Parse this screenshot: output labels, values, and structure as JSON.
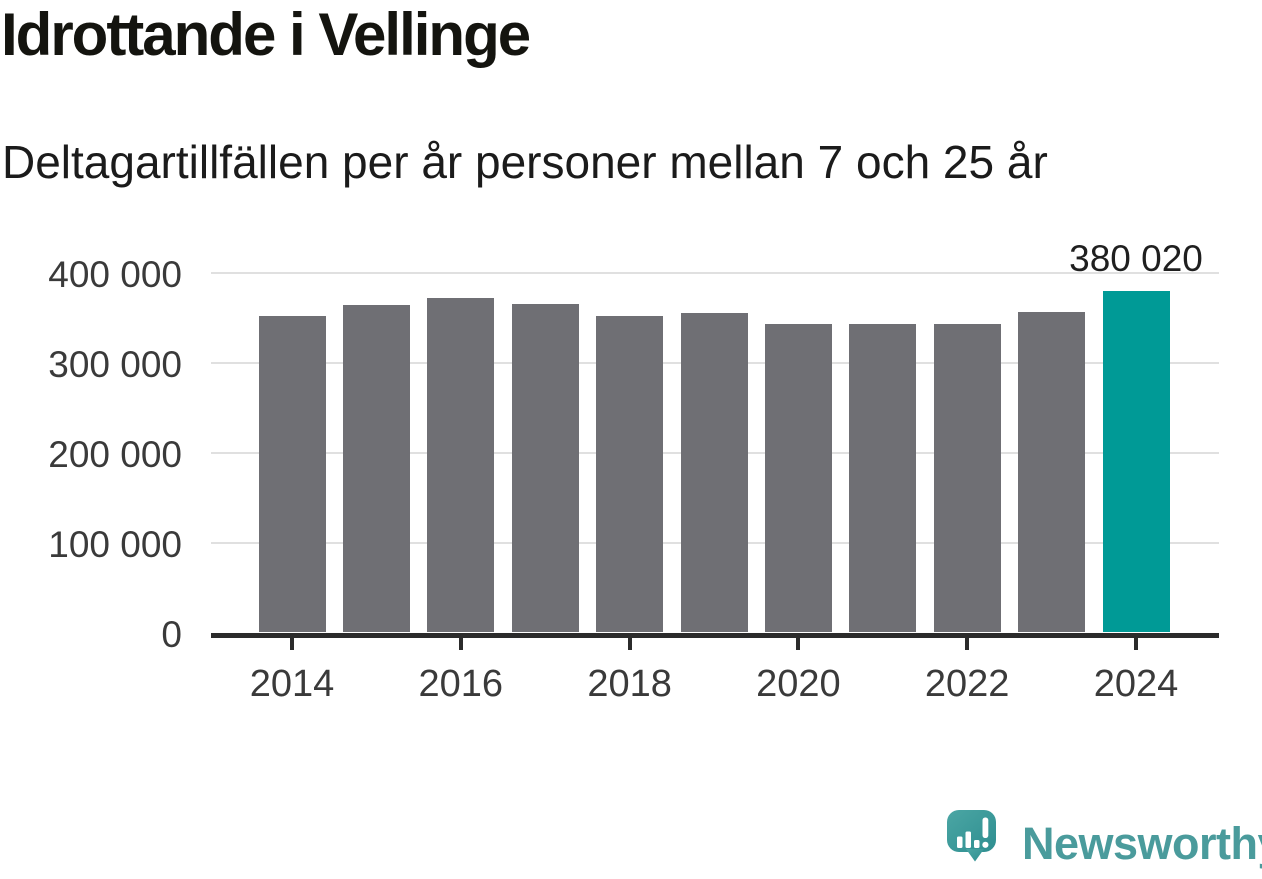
{
  "header": {
    "title": "Idrottande i Vellinge",
    "subtitle": "Deltagartillfällen per år personer mellan 7 och 25 år"
  },
  "chart_data": {
    "type": "bar",
    "categories": [
      "2014",
      "2015",
      "2016",
      "2017",
      "2018",
      "2019",
      "2020",
      "2021",
      "2022",
      "2023",
      "2024"
    ],
    "values": [
      352000,
      364500,
      372500,
      366000,
      352500,
      355500,
      344000,
      344000,
      344000,
      357500,
      380020
    ],
    "highlight_index": 10,
    "highlight_label": "380 020",
    "title": "Idrottande i Vellinge",
    "subtitle": "Deltagartillfällen per år personer mellan 7 och 25 år",
    "xlabel": "",
    "ylabel": "",
    "ylim": [
      0,
      400000
    ],
    "yticks": [
      0,
      100000,
      200000,
      300000,
      400000
    ],
    "ytick_labels": [
      "0",
      "100 000",
      "200 000",
      "300 000",
      "400 000"
    ],
    "xtick_labels": [
      "2014",
      "2016",
      "2018",
      "2020",
      "2022",
      "2024"
    ],
    "grid": "horizontal-only",
    "legend": "none",
    "colors": {
      "bar": "#6F6F74",
      "highlight": "#009A96",
      "grid": "#E0E0E0",
      "axis": "#2B2B2B",
      "tick_label": "#3A3A3A",
      "value_label": "#1F1F1F"
    }
  },
  "footer": {
    "brand": "Newsworthy",
    "brand_color": "#4A9B9C",
    "icon": "newsworthy-speech-bubble-chart-icon",
    "icon_colors": {
      "bubble_top": "#4BA6A4",
      "bubble_bottom": "#2E8E90",
      "glyph": "#FFFFFF"
    }
  }
}
